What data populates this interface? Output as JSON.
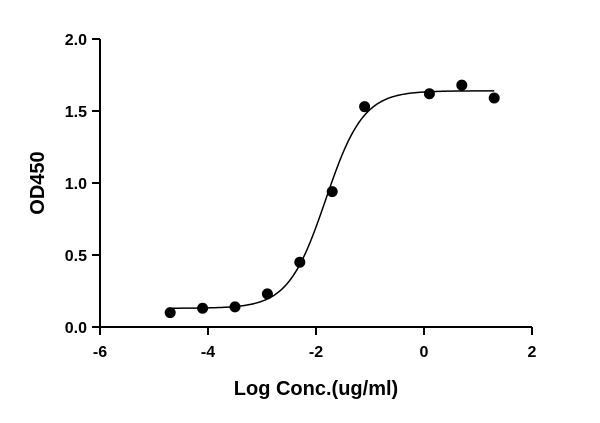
{
  "chart_data": {
    "type": "scatter",
    "title": "",
    "xlabel": "Log Conc.(ug/ml)",
    "ylabel": "OD450",
    "xlim": [
      -6,
      2
    ],
    "ylim": [
      0,
      2
    ],
    "xticks": [
      "-6",
      "-4",
      "-2",
      "0",
      "2"
    ],
    "yticks": [
      "0.0",
      "0.5",
      "1.0",
      "1.5",
      "2.0"
    ],
    "grid": false,
    "legend": "none",
    "series": [
      {
        "x": [
          -4.7,
          -4.1,
          -3.5,
          -2.9,
          -2.3,
          -1.7,
          -1.1,
          0.1,
          0.7,
          1.3
        ],
        "y": [
          0.1,
          0.13,
          0.14,
          0.23,
          0.45,
          0.94,
          1.53,
          1.62,
          1.68,
          1.59
        ]
      }
    ],
    "fit": {
      "model": "4PL",
      "bottom": 0.13,
      "top": 1.64,
      "logEC50": -1.82,
      "hill": 1.25
    },
    "colors": {
      "points": "#000000",
      "curve": "#000000",
      "axes": "#000000"
    }
  }
}
